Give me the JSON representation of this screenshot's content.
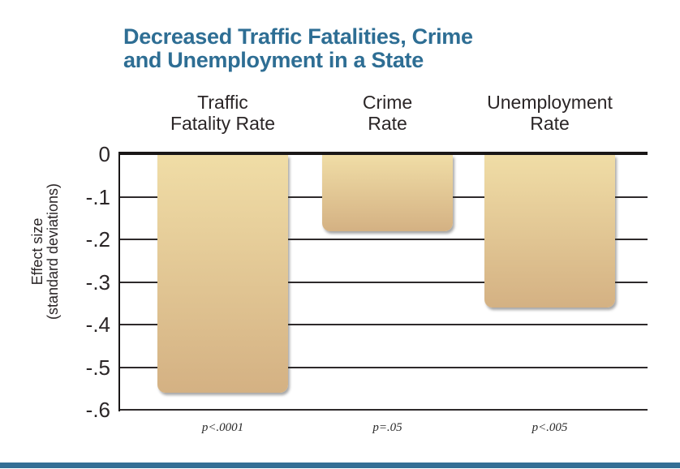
{
  "page": {
    "title_line1": "Decreased Traffic Fatalities, Crime",
    "title_line2": "and Unemployment in a State",
    "title_color": "#2E6E94",
    "footer_bar_color": "#336E94"
  },
  "chart_data": {
    "type": "bar",
    "title": "Decreased Traffic Fatalities, Crime and Unemployment in a State",
    "categories": [
      "Traffic Fatality Rate",
      "Crime Rate",
      "Unemployment Rate"
    ],
    "category_lines": [
      [
        "Traffic",
        "Fatality Rate"
      ],
      [
        "Crime",
        "Rate"
      ],
      [
        "Unemployment",
        "Rate"
      ]
    ],
    "values": [
      -0.56,
      -0.18,
      -0.36
    ],
    "annotations": [
      "p<.0001",
      "p=.05",
      "p<.005"
    ],
    "ylabel": "Effect size (standard deviations)",
    "ylabel_lines": [
      "Effect size",
      "(standard deviations)"
    ],
    "ylim": [
      -0.6,
      0
    ],
    "yticks": [
      0,
      -0.1,
      -0.2,
      -0.3,
      -0.4,
      -0.5,
      -0.6
    ],
    "ytick_labels": [
      "0",
      "-.1",
      "-.2",
      "-.3",
      "-.4",
      "-.5",
      "-.6"
    ],
    "grid": true,
    "legend": false,
    "bar_color_top": "#F0DDA6",
    "bar_color_bottom": "#D4B183",
    "axis_color": "#1A1717",
    "gridline_color": "#2E2A2B"
  }
}
